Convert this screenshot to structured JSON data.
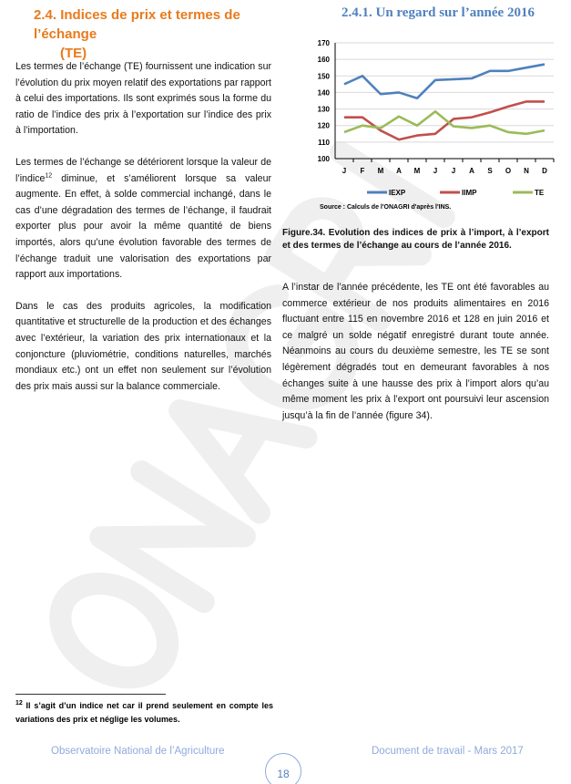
{
  "section": {
    "number": "2.4.",
    "title_line1": "Indices de prix et termes de l’échange",
    "title_line2": "(TE)"
  },
  "subsection": {
    "title": "2.4.1.  Un regard sur l’année 2016"
  },
  "left_paragraphs": [
    "Les termes de l’échange (TE) fournissent une indication sur l’évolution du prix moyen relatif des exportations par rapport à celui des importations. Ils sont exprimés sous la forme du ratio de l’indice des prix à l’exportation sur l’indice des prix à l’importation.",
    "Dans le cas des produits agricoles, la modification quantitative et structurelle de la production et des échanges avec l’extérieur, la variation des prix internationaux et la conjoncture (pluviométrie, conditions naturelles, marchés mondiaux etc.) ont un effet non seulement sur l’évolution des prix mais aussi sur la balance commerciale."
  ],
  "para2": {
    "before": "Les termes de l’échange se détériorent lorsque la valeur de l’indice",
    "sup": "12",
    "after": " diminue, et s’améliorent lorsque sa valeur augmente. En effet, à solde commercial inchangé, dans le cas d’une dégradation des termes de l’échange, il faudrait exporter plus pour avoir la même quantité de biens importés, alors qu’une évolution favorable des termes de l’échange traduit  une valorisation des exportations par rapport aux importations."
  },
  "chart_data": {
    "type": "line",
    "categories": [
      "J",
      "F",
      "M",
      "A",
      "M",
      "J",
      "J",
      "A",
      "S",
      "O",
      "N",
      "D"
    ],
    "ylim": [
      100,
      170
    ],
    "yticks": [
      100,
      110,
      120,
      130,
      140,
      150,
      160,
      170
    ],
    "grid": true,
    "legend_position": "bottom",
    "series": [
      {
        "name": "IEXP",
        "color": "#4f81bd",
        "values": [
          145,
          150,
          139,
          140,
          136.5,
          147.5,
          148,
          148.5,
          153,
          153,
          155,
          157
        ]
      },
      {
        "name": "IIMP",
        "color": "#c0504d",
        "values": [
          125,
          125,
          117,
          111.5,
          114,
          115,
          124,
          125,
          128,
          131.5,
          134.5,
          134.5
        ]
      },
      {
        "name": "TE",
        "color": "#9bbb59",
        "values": [
          116,
          120,
          118.5,
          125.5,
          120,
          128.5,
          119.5,
          118.5,
          120,
          116,
          115,
          117
        ]
      }
    ],
    "source": "Source : Calculs de l'ONAGRI d'après l'INS."
  },
  "figure_caption": "Figure.34. Evolution des indices de prix à l’import, à l’export et des termes de l’échange au cours de l’année 2016.",
  "right_paragraph": "A l’instar de l’année précédente, les TE ont été favorables au commerce extérieur de nos produits alimentaires en 2016 fluctuant entre 115 en novembre 2016 et 128 en juin 2016 et ce malgré un solde négatif enregistré durant toute année. Néanmoins au cours du deuxième semestre, les TE se sont légèrement dégradés tout en demeurant favorables à nos échanges suite à une hausse des prix à l’import alors qu’au même moment les prix à l’export ont poursuivi leur ascension jusqu’à la fin de l’année (figure 34).",
  "footnote": {
    "sup": "12",
    "text": " Il s’agit d’un indice net car il prend seulement en compte les variations des prix et néglige les volumes."
  },
  "footer": {
    "left": "Observatoire National de l’Agriculture",
    "right": "Document de travail - Mars 2017",
    "page": "18"
  },
  "watermark": "ONAGRI"
}
